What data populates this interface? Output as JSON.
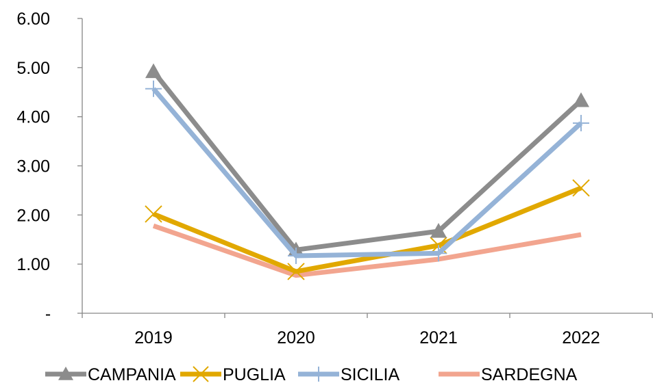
{
  "chart_data": {
    "type": "line",
    "title": "",
    "xlabel": "",
    "ylabel": "",
    "categories": [
      "2019",
      "2020",
      "2021",
      "2022"
    ],
    "ylim": [
      0,
      6
    ],
    "y_ticks": [
      0,
      1,
      2,
      3,
      4,
      5,
      6
    ],
    "y_tick_labels": [
      "-",
      "1.00",
      "2.00",
      "3.00",
      "4.00",
      "5.00",
      "6.00"
    ],
    "grid": false,
    "legend_position": "bottom",
    "series": [
      {
        "name": "CAMPANIA",
        "values": [
          4.92,
          1.29,
          1.67,
          4.33
        ],
        "color": "#8c8c8c",
        "marker": "triangle"
      },
      {
        "name": "PUGLIA",
        "values": [
          2.02,
          0.85,
          1.38,
          2.55
        ],
        "color": "#e1a800",
        "marker": "x"
      },
      {
        "name": "SICILIA",
        "values": [
          4.57,
          1.17,
          1.22,
          3.87
        ],
        "color": "#95b3d7",
        "marker": "plus"
      },
      {
        "name": "SARDEGNA",
        "values": [
          1.78,
          0.77,
          1.1,
          1.6
        ],
        "color": "#f2a58f",
        "marker": "none"
      }
    ]
  }
}
